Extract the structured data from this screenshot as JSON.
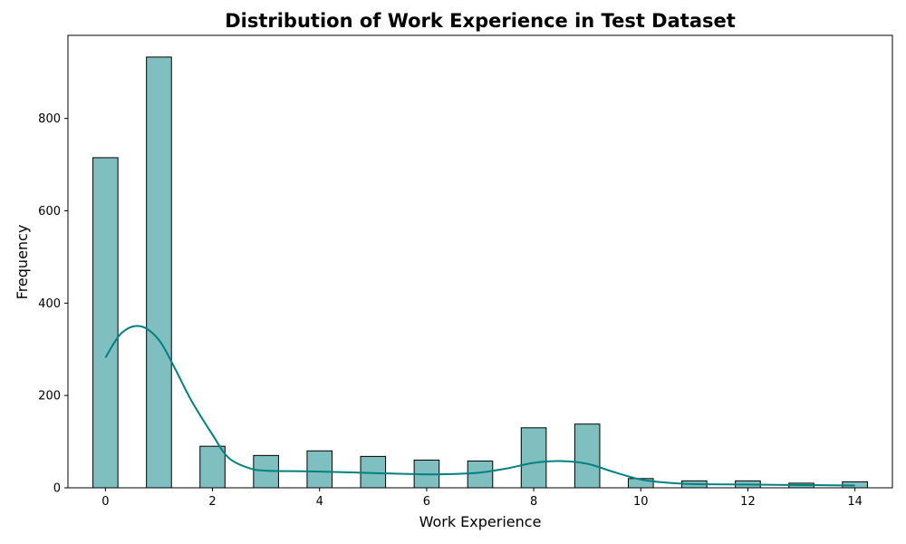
{
  "chart_data": {
    "type": "bar",
    "title": "Distribution of Work Experience in Test Dataset",
    "xlabel": "Work Experience",
    "ylabel": "Frequency",
    "xlim": [
      -0.7,
      14.7
    ],
    "ylim": [
      0,
      980
    ],
    "x_ticks": [
      0,
      2,
      4,
      6,
      8,
      10,
      12,
      14
    ],
    "y_ticks": [
      0,
      200,
      400,
      600,
      800
    ],
    "grid": false,
    "legend": "none",
    "bar_color": "#80bfbf",
    "bar_edge_color": "#000000",
    "kde_color": "#008080",
    "bin_width": 0.4667,
    "bins": [
      {
        "x": 0,
        "value": 715
      },
      {
        "x": 1,
        "value": 933
      },
      {
        "x": 2,
        "value": 90
      },
      {
        "x": 3,
        "value": 70
      },
      {
        "x": 4,
        "value": 80
      },
      {
        "x": 5,
        "value": 68
      },
      {
        "x": 6,
        "value": 60
      },
      {
        "x": 7,
        "value": 58
      },
      {
        "x": 8,
        "value": 130
      },
      {
        "x": 9,
        "value": 138
      },
      {
        "x": 10,
        "value": 20
      },
      {
        "x": 11,
        "value": 15
      },
      {
        "x": 12,
        "value": 15
      },
      {
        "x": 13,
        "value": 10
      },
      {
        "x": 14,
        "value": 13
      }
    ],
    "kde": {
      "x": [
        0,
        0.3,
        0.65,
        1.0,
        1.3,
        1.6,
        2.0,
        2.3,
        2.7,
        3.0,
        3.5,
        4.0,
        5.0,
        6.0,
        6.5,
        7.0,
        7.5,
        8.0,
        8.5,
        9.0,
        9.5,
        10.0,
        10.5,
        11.0,
        12.0,
        13.0,
        14.0
      ],
      "y": [
        282,
        335,
        350,
        320,
        258,
        190,
        115,
        65,
        42,
        37,
        36,
        35,
        32,
        29,
        30,
        33,
        42,
        54,
        58,
        52,
        34,
        18,
        11,
        8,
        7,
        6,
        5
      ]
    }
  }
}
